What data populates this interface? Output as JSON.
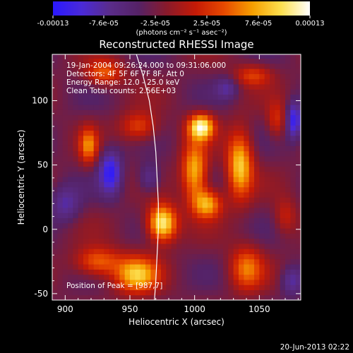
{
  "colorbar": {
    "tick_labels": [
      "-0.00013",
      "-7.6e-05",
      "-2.5e-05",
      "2.5e-05",
      "7.6e-05",
      "0.00013"
    ],
    "unit_label": "(photons cm⁻² s⁻¹ asec⁻²)",
    "colors": [
      "#2a18ff",
      "#4a2ad8",
      "#5a2c8a",
      "#552266",
      "#8a1a2a",
      "#c41a06",
      "#e84a00",
      "#f6a000",
      "#fde050",
      "#ffffff"
    ]
  },
  "chart_data": {
    "type": "heatmap",
    "title": "Reconstructed RHESSI Image",
    "xlabel": "Heliocentric X (arcsec)",
    "ylabel": "Heliocentric Y (arcsec)",
    "xlim": [
      890,
      1082
    ],
    "ylim": [
      -55,
      136
    ],
    "x_ticks": [
      900,
      950,
      1000,
      1050
    ],
    "y_ticks": [
      -50,
      0,
      50,
      100
    ],
    "colorbar_range": [
      -0.00013,
      0.00013
    ],
    "grid_step": 4,
    "annotations": [
      "19-Jan-2004 09:26:24.000 to 09:31:06.000",
      "Detectors: 4F 5F 6F 7F 8F, Att 0",
      "Energy Range: 12.0 - 25.0 keV",
      "Clean     Total counts: 2.56E+03"
    ],
    "peak_label": "Position of Peak = [987,7]",
    "footer_date": "20-Jun-2013 02:22",
    "limb_curve": [
      [
        955,
        136
      ],
      [
        960,
        120
      ],
      [
        965,
        100
      ],
      [
        968,
        80
      ],
      [
        970,
        60
      ],
      [
        971,
        40
      ],
      [
        972,
        20
      ],
      [
        972,
        0
      ],
      [
        971,
        -20
      ],
      [
        970,
        -40
      ],
      [
        969,
        -55
      ]
    ],
    "sources": [
      {
        "x": 975,
        "y": 5,
        "sx": 8,
        "sy": 10,
        "amp": 1.0
      },
      {
        "x": 1005,
        "y": 80,
        "sx": 7,
        "sy": 7,
        "amp": 0.95
      },
      {
        "x": 1035,
        "y": 50,
        "sx": 7,
        "sy": 18,
        "amp": 0.8
      },
      {
        "x": 1000,
        "y": 45,
        "sx": 7,
        "sy": 16,
        "amp": 0.75
      },
      {
        "x": 1010,
        "y": 20,
        "sx": 8,
        "sy": 8,
        "amp": 0.7
      },
      {
        "x": 955,
        "y": -35,
        "sx": 12,
        "sy": 10,
        "amp": 0.75
      },
      {
        "x": 925,
        "y": -25,
        "sx": 12,
        "sy": 8,
        "amp": 0.55
      },
      {
        "x": 918,
        "y": 65,
        "sx": 5,
        "sy": 10,
        "amp": 0.55
      },
      {
        "x": 1040,
        "y": -30,
        "sx": 9,
        "sy": 12,
        "amp": 0.55
      },
      {
        "x": 930,
        "y": 122,
        "sx": 10,
        "sy": 7,
        "amp": 0.5
      },
      {
        "x": 957,
        "y": 80,
        "sx": 10,
        "sy": 8,
        "amp": 0.45
      },
      {
        "x": 1045,
        "y": 120,
        "sx": 10,
        "sy": 6,
        "amp": 0.4
      },
      {
        "x": 1063,
        "y": 85,
        "sx": 5,
        "sy": 10,
        "amp": 0.35
      },
      {
        "x": 1070,
        "y": 10,
        "sx": 6,
        "sy": 10,
        "amp": 0.3
      },
      {
        "x": 935,
        "y": 45,
        "sx": 6,
        "sy": 12,
        "amp": -0.6
      },
      {
        "x": 1077,
        "y": 85,
        "sx": 4,
        "sy": 10,
        "amp": -0.6
      },
      {
        "x": 965,
        "y": 40,
        "sx": 6,
        "sy": 8,
        "amp": -0.35
      },
      {
        "x": 1025,
        "y": 110,
        "sx": 6,
        "sy": 6,
        "amp": -0.3
      },
      {
        "x": 900,
        "y": 20,
        "sx": 8,
        "sy": 10,
        "amp": -0.35
      },
      {
        "x": 1075,
        "y": -40,
        "sx": 6,
        "sy": 8,
        "amp": -0.35
      }
    ]
  }
}
